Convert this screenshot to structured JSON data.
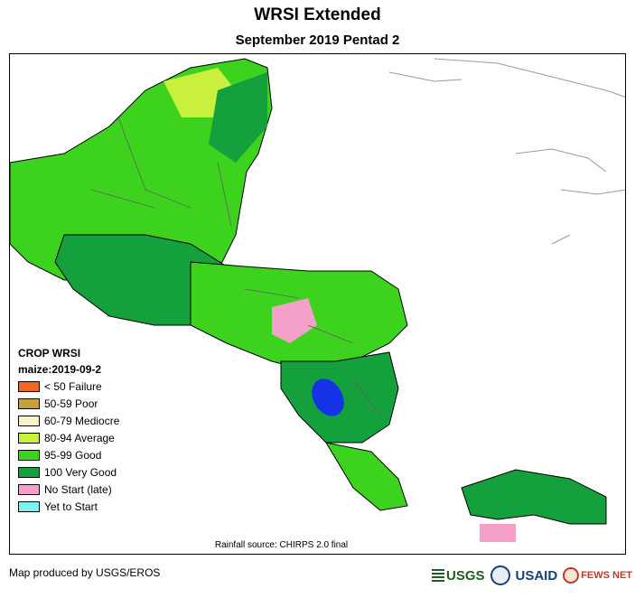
{
  "title": "WRSI Extended",
  "subtitle": "September 2019 Pentad 2",
  "legend": {
    "title": "CROP WRSI",
    "subtitle": "maize:2019-09-2",
    "items": [
      {
        "label": "< 50  Failure",
        "color": "#f26522"
      },
      {
        "label": "50-59 Poor",
        "color": "#c8a03c"
      },
      {
        "label": "60-79 Mediocre",
        "color": "#f5f5c8"
      },
      {
        "label": "80-94 Average",
        "color": "#c8f03c"
      },
      {
        "label": "95-99 Good",
        "color": "#3cd21e"
      },
      {
        "label": "100 Very Good",
        "color": "#14a03c"
      },
      {
        "label": "No Start (late)",
        "color": "#f5a0c8"
      },
      {
        "label": "Yet to Start",
        "color": "#78f5f0"
      }
    ]
  },
  "source": "Rainfall source: CHIRPS 2.0 final",
  "producer": "Map produced by USGS/EROS",
  "logos": {
    "usgs": "USGS",
    "usaid": "USAID",
    "fews": "FEWS NET"
  },
  "colors": {
    "water": "#1432e6",
    "border": "#000000"
  }
}
